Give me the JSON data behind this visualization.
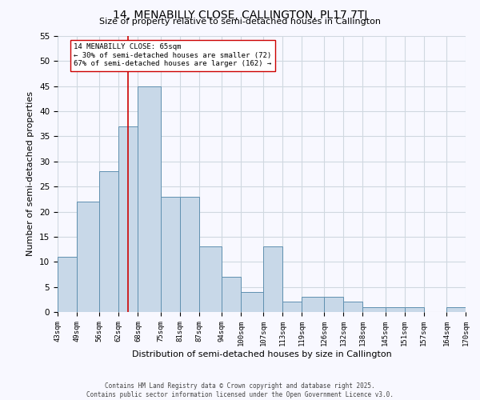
{
  "title": "14, MENABILLY CLOSE, CALLINGTON, PL17 7TJ",
  "subtitle": "Size of property relative to semi-detached houses in Callington",
  "xlabel": "Distribution of semi-detached houses by size in Callington",
  "ylabel": "Number of semi-detached properties",
  "bin_edges": [
    43,
    49,
    56,
    62,
    68,
    75,
    81,
    87,
    94,
    100,
    107,
    113,
    119,
    126,
    132,
    138,
    145,
    151,
    157,
    164,
    170
  ],
  "bar_heights": [
    11,
    22,
    28,
    37,
    45,
    23,
    23,
    13,
    7,
    4,
    13,
    2,
    3,
    3,
    2,
    1,
    1,
    1,
    0,
    1
  ],
  "bar_color": "#c8d8e8",
  "bar_edgecolor": "#6090b0",
  "property_value": 65,
  "vline_color": "#cc0000",
  "annotation_text": "14 MENABILLY CLOSE: 65sqm\n← 30% of semi-detached houses are smaller (72)\n67% of semi-detached houses are larger (162) →",
  "annotation_box_edgecolor": "#cc0000",
  "annotation_box_facecolor": "white",
  "ylim": [
    0,
    55
  ],
  "yticks": [
    0,
    5,
    10,
    15,
    20,
    25,
    30,
    35,
    40,
    45,
    50,
    55
  ],
  "tick_labels": [
    "43sqm",
    "49sqm",
    "56sqm",
    "62sqm",
    "68sqm",
    "75sqm",
    "81sqm",
    "87sqm",
    "94sqm",
    "100sqm",
    "107sqm",
    "113sqm",
    "119sqm",
    "126sqm",
    "132sqm",
    "138sqm",
    "145sqm",
    "151sqm",
    "157sqm",
    "164sqm",
    "170sqm"
  ],
  "grid_color": "#d0d8e0",
  "footer_text": "Contains HM Land Registry data © Crown copyright and database right 2025.\nContains public sector information licensed under the Open Government Licence v3.0.",
  "background_color": "#f8f8ff"
}
